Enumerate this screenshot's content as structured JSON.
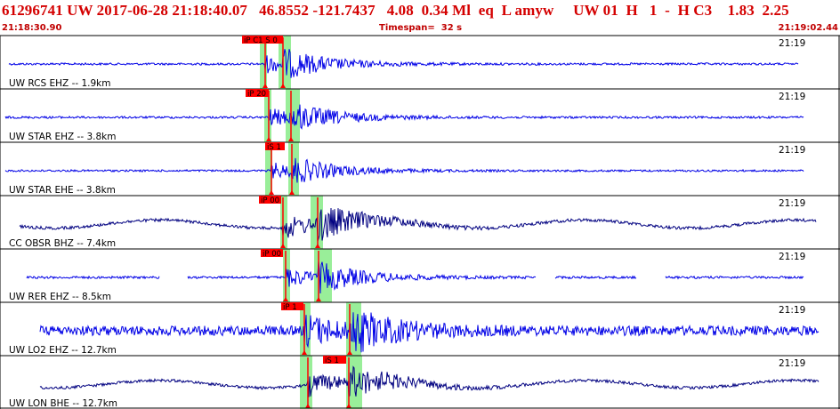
{
  "header": {
    "title": "61296741 UW 2017-06-28 21:18:40.07   46.8552 -121.7437   4.08  0.34 Ml  eq  L amyw     UW 01  H   1  -  H C3    1.83  2.25",
    "start_time": "21:18:30.90",
    "timespan": "Timespan=  32 s",
    "end_time": "21:19:02.44"
  },
  "colors": {
    "trace_blue": "#0000e6",
    "trace_navy": "#000080",
    "pick_red": "#ff0000",
    "window_green": "#99ee99",
    "title_red": "#d40000"
  },
  "traces": [
    {
      "label": "UW RCS EHZ -- 1.9km",
      "time_label": "21:19",
      "color": "blue",
      "amplitude": 0.55,
      "picks": [
        {
          "text": "iP C1 S 0"
        }
      ]
    },
    {
      "label": "UW STAR EHZ -- 3.8km",
      "time_label": "21:19",
      "color": "blue",
      "amplitude": 0.55,
      "picks": [
        {
          "text": "iP 20"
        }
      ]
    },
    {
      "label": "UW STAR EHE -- 3.8km",
      "time_label": "21:19",
      "color": "blue",
      "amplitude": 0.5,
      "picks": [
        {
          "text": "iS 1"
        }
      ]
    },
    {
      "label": "CC OBSR BHZ -- 7.4km",
      "time_label": "21:19",
      "color": "navy",
      "amplitude": 0.75,
      "picks": [
        {
          "text": "iP 00"
        }
      ]
    },
    {
      "label": "UW RER EHZ -- 8.5km",
      "time_label": "21:19",
      "color": "blue",
      "amplitude": 0.6,
      "picks": [
        {
          "text": "iP 00"
        }
      ]
    },
    {
      "label": "UW LO2 EHZ -- 12.7km",
      "time_label": "21:19",
      "color": "blue",
      "amplitude": 0.9,
      "picks": [
        {
          "text": "iP 1"
        }
      ]
    },
    {
      "label": "UW LON BHE -- 12.7km",
      "time_label": "21:19",
      "color": "navy",
      "amplitude": 0.7,
      "picks": [
        {
          "text": "iS 1"
        }
      ]
    }
  ]
}
